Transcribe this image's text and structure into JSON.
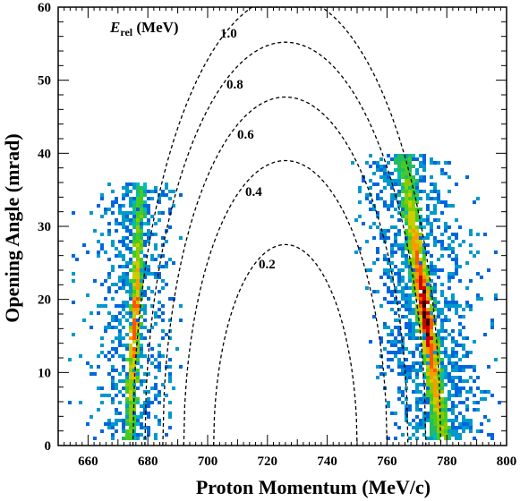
{
  "chart_data": {
    "type": "heatmap",
    "title": "",
    "xlabel": "Proton Momentum (MeV/c)",
    "ylabel": "Opening Angle (mrad)",
    "xlim": [
      650,
      800
    ],
    "ylim": [
      0,
      60
    ],
    "x_ticks": [
      "660",
      "680",
      "700",
      "720",
      "740",
      "760",
      "780",
      "800"
    ],
    "y_ticks": [
      "0",
      "10",
      "20",
      "30",
      "40",
      "50",
      "60"
    ],
    "legend_title": {
      "main": "E",
      "subscript": "rel",
      "unit": " (MeV)"
    },
    "contours": [
      {
        "label": "0.2",
        "erel": 0.2,
        "peak": 27.5,
        "x_at_zero": [
          702,
          750
        ]
      },
      {
        "label": "0.4",
        "erel": 0.4,
        "peak": 39.0,
        "x_at_zero": [
          692,
          760
        ]
      },
      {
        "label": "0.6",
        "erel": 0.6,
        "peak": 47.7,
        "x_at_zero": [
          685,
          767
        ]
      },
      {
        "label": "0.8",
        "erel": 0.8,
        "peak": 55.2,
        "x_at_zero": [
          679,
          773
        ]
      },
      {
        "label": "1.0",
        "erel": 1.0,
        "peak": 61.6,
        "x_at_zero": [
          675,
          778
        ]
      }
    ],
    "bands": [
      {
        "name": "left",
        "x_top": 677,
        "x_bottom": 673.5,
        "y_range": [
          1,
          36
        ]
      },
      {
        "name": "right",
        "x_top": 765,
        "x_bottom": 778,
        "y_range": [
          1,
          40
        ]
      }
    ],
    "colors": [
      "#0000ff",
      "#0066dd",
      "#0099cc",
      "#00bbbb",
      "#22bb66",
      "#44cc22",
      "#88cc00",
      "#cccc00",
      "#ff9900",
      "#ff5500",
      "#cc0000",
      "#330000"
    ]
  }
}
